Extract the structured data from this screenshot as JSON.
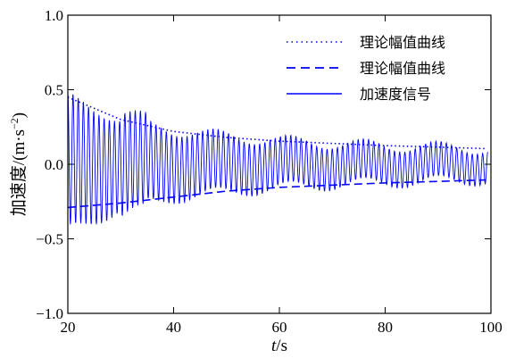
{
  "chart_data": {
    "type": "line",
    "xlabel_italic": "t",
    "xlabel_unit": "/s",
    "ylabel": "加速度/(m·s",
    "ylabel_exp": "−2",
    "ylabel_close": ")",
    "xlim": [
      20,
      100
    ],
    "ylim": [
      -1.0,
      1.0
    ],
    "x_ticks": [
      20,
      40,
      60,
      80,
      100
    ],
    "x_tick_labels": [
      "20",
      "40",
      "60",
      "80",
      "100"
    ],
    "y_ticks": [
      -1.0,
      -0.5,
      0.0,
      0.5,
      1.0
    ],
    "y_tick_labels": [
      "−1.0",
      "−0.5",
      "0.0",
      "0.5",
      "1.0"
    ],
    "grid": false,
    "legend_position": "top-right",
    "series": [
      {
        "name": "理论幅值曲线",
        "style": "dotted",
        "color": "#0000ff",
        "x": [
          20,
          30,
          40,
          50,
          60,
          70,
          80,
          90,
          99
        ],
        "y": [
          0.45,
          0.3,
          0.22,
          0.18,
          0.155,
          0.14,
          0.125,
          0.115,
          0.105
        ]
      },
      {
        "name": "理论幅值曲线",
        "style": "dashed",
        "color": "#0000ff",
        "x": [
          20,
          30,
          40,
          50,
          60,
          70,
          80,
          90,
          99
        ],
        "y": [
          -0.29,
          -0.26,
          -0.22,
          -0.18,
          -0.155,
          -0.14,
          -0.125,
          -0.115,
          -0.105
        ]
      },
      {
        "name": "加速度信号",
        "style": "solid",
        "color": "#0000ff",
        "description_values": {
          "envelope_x": [
            20,
            25,
            30,
            40,
            50,
            60,
            70,
            80,
            90,
            99
          ],
          "envelope_y": [
            0.45,
            0.38,
            0.3,
            0.23,
            0.19,
            0.16,
            0.14,
            0.125,
            0.115,
            0.105
          ]
        }
      }
    ]
  },
  "colors": {
    "signal": "#0000ff",
    "axes": "#000000"
  }
}
